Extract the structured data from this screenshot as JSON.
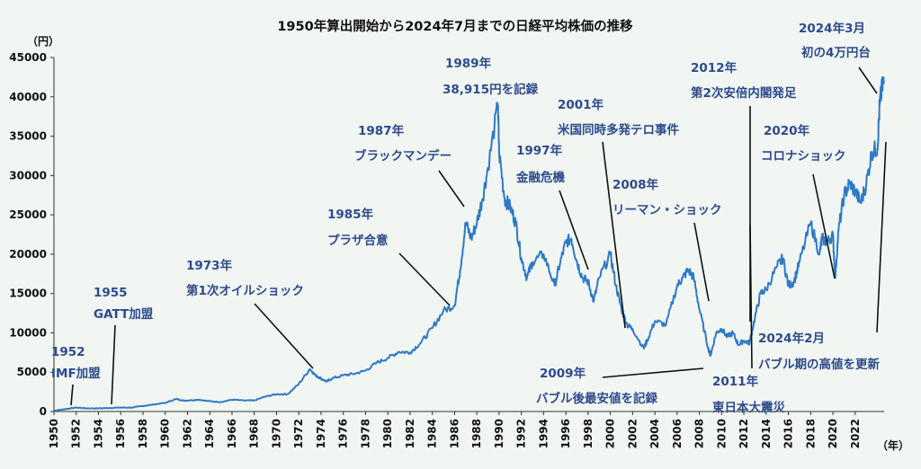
{
  "chart_data": {
    "type": "line",
    "title": "1950年算出開始から2024年7月までの日経平均株価の推移",
    "ylabel": "（円）",
    "xlabel": "（年）",
    "xlim": [
      1950,
      2024.6
    ],
    "ylim": [
      0,
      45000
    ],
    "yticks": [
      0,
      5000,
      10000,
      15000,
      20000,
      25000,
      30000,
      35000,
      40000,
      45000
    ],
    "xticks": [
      "1950",
      "1952",
      "1954",
      "1956",
      "1958",
      "1960",
      "1962",
      "1964",
      "1966",
      "1968",
      "1970",
      "1972",
      "1974",
      "1976",
      "1978",
      "1980",
      "1982",
      "1984",
      "1986",
      "1988",
      "1990",
      "1992",
      "1994",
      "1996",
      "1998",
      "2000",
      "2002",
      "2004",
      "2006",
      "2008",
      "2010",
      "2012",
      "2014",
      "2016",
      "2018",
      "2020",
      "2022"
    ],
    "grid": false,
    "color": "#2f79c4",
    "series": [
      {
        "x": [
          1950,
          1950.5,
          1951,
          1952,
          1953,
          1954,
          1955,
          1956,
          1957,
          1958,
          1959,
          1960,
          1961,
          1961.5,
          1962,
          1963,
          1964,
          1965,
          1966,
          1967,
          1968,
          1969,
          1970,
          1971,
          1972,
          1973,
          1973.5,
          1974,
          1974.5,
          1975,
          1976,
          1977,
          1978,
          1979,
          1980,
          1981,
          1982,
          1983,
          1984,
          1985,
          1986,
          1986.5,
          1987,
          1987.5,
          1988,
          1988.5,
          1989,
          1989.9,
          1990,
          1990.5,
          1991,
          1991.5,
          1992,
          1992.5,
          1993,
          1994,
          1995,
          1995.5,
          1996,
          1996.5,
          1997,
          1997.5,
          1998,
          1998.5,
          1999,
          2000,
          2000.5,
          2001,
          2001.5,
          2002,
          2003,
          2003.3,
          2004,
          2005,
          2006,
          2006.5,
          2007,
          2007.5,
          2008,
          2008.8,
          2009,
          2009.5,
          2010,
          2010.5,
          2011,
          2011.5,
          2012,
          2012.5,
          2013,
          2013.5,
          2014,
          2015,
          2015.5,
          2016,
          2016.5,
          2017,
          2018,
          2018.8,
          2019,
          2019.5,
          2020,
          2020.2,
          2020.5,
          2021,
          2021.5,
          2022,
          2022.5,
          2023,
          2023.5,
          2024,
          2024.2,
          2024.4,
          2024.6
        ],
        "y": [
          100,
          200,
          300,
          500,
          400,
          400,
          450,
          500,
          500,
          700,
          900,
          1100,
          1600,
          1400,
          1400,
          1500,
          1300,
          1200,
          1500,
          1400,
          1400,
          1900,
          2200,
          2200,
          3500,
          5400,
          4600,
          4200,
          3800,
          4200,
          4600,
          4800,
          5200,
          6200,
          6800,
          7600,
          7500,
          8800,
          10600,
          12800,
          13500,
          18000,
          24000,
          22000,
          24000,
          27000,
          31000,
          38915,
          33000,
          27000,
          26000,
          24000,
          19500,
          17000,
          19000,
          20000,
          16000,
          19000,
          21500,
          22000,
          19000,
          17000,
          16500,
          14000,
          17000,
          20000,
          16000,
          13000,
          11000,
          10500,
          8000,
          9000,
          11500,
          11000,
          16000,
          17000,
          18000,
          17000,
          13000,
          8000,
          7100,
          10000,
          10500,
          9500,
          10000,
          8500,
          9000,
          8700,
          12000,
          15000,
          15500,
          18500,
          19500,
          16000,
          16500,
          19000,
          24000,
          20000,
          22000,
          21500,
          22500,
          17000,
          23000,
          27500,
          29000,
          28000,
          26500,
          29000,
          33000,
          33500,
          39000,
          41000,
          42000
        ]
      }
    ],
    "annotations": [
      {
        "label": "1952",
        "text": "IMF加盟"
      },
      {
        "label": "1955",
        "text": "GATT加盟"
      },
      {
        "label": "1973年",
        "text": "第1次オイルショック"
      },
      {
        "label": "1985年",
        "text": "プラザ合意"
      },
      {
        "label": "1987年",
        "text": "ブラックマンデー"
      },
      {
        "label": "1989年",
        "text": "38,915円を記録"
      },
      {
        "label": "1997年",
        "text": "金融危機"
      },
      {
        "label": "2001年",
        "text": "米国同時多発テロ事件"
      },
      {
        "label": "2008年",
        "text": "リーマン・ショック"
      },
      {
        "label": "2009年",
        "text": "バブル後最安値を記録"
      },
      {
        "label": "2011年",
        "text": "東日本大震災"
      },
      {
        "label": "2012年",
        "text": "第2次安倍内閣発足"
      },
      {
        "label": "2020年",
        "text": "コロナショック"
      },
      {
        "label": "2024年2月",
        "text": "バブル期の高値を更新"
      },
      {
        "label": "2024年3月",
        "text": "初の4万円台"
      }
    ]
  }
}
